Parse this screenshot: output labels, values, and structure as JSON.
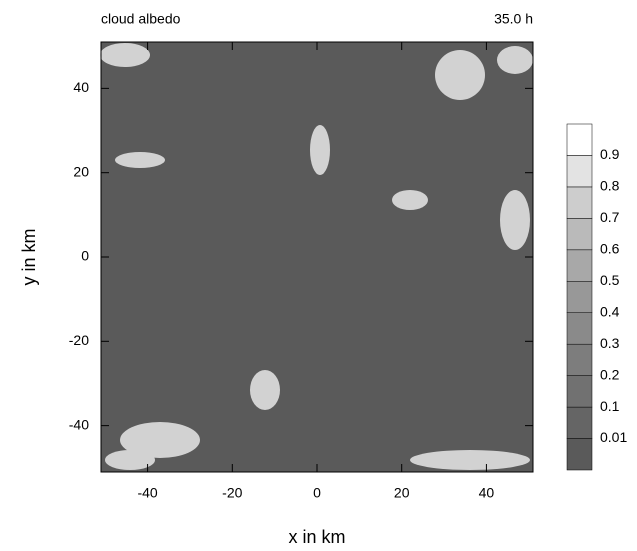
{
  "chart_data": {
    "type": "heatmap",
    "title": "cloud albedo",
    "subtitle": "35.0 h",
    "x_label": "x in km",
    "y_label": "y in km",
    "xlim": [
      -51,
      51
    ],
    "ylim": [
      -51,
      51
    ],
    "xticks": [
      -40,
      -20,
      0,
      20,
      40
    ],
    "yticks": [
      -40,
      -20,
      0,
      20,
      40
    ],
    "colorbar": {
      "levels": [
        0.01,
        0.1,
        0.2,
        0.3,
        0.4,
        0.5,
        0.6,
        0.7,
        0.8,
        0.9
      ],
      "colors": [
        "#5a5a5a",
        "#656565",
        "#717171",
        "#7d7d7d",
        "#8a8a8a",
        "#989898",
        "#a8a8a8",
        "#bababa",
        "#cdcdcd",
        "#e3e3e3",
        "#ffffff"
      ]
    }
  }
}
